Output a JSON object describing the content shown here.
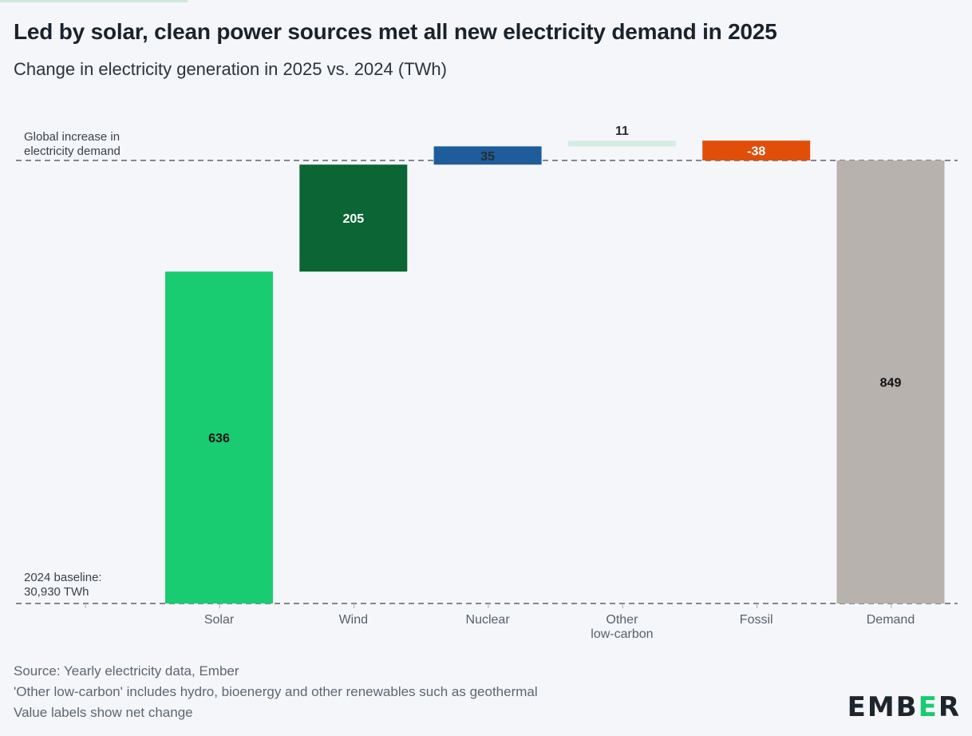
{
  "title": "Led by solar, clean power sources met all new electricity demand in 2025",
  "subtitle": "Change in electricity generation in 2025 vs. 2024 (TWh)",
  "annotations": {
    "demand_line": [
      "Global increase in",
      "electricity demand"
    ],
    "baseline": [
      "2024 baseline:",
      "30,930 TWh"
    ]
  },
  "chart_data": {
    "type": "waterfall",
    "unit": "TWh",
    "categories": [
      "Solar",
      "Wind",
      "Nuclear",
      "Other low-carbon",
      "Fossil",
      "Demand"
    ],
    "category_label_lines": [
      [
        "Solar"
      ],
      [
        "Wind"
      ],
      [
        "Nuclear"
      ],
      [
        "Other",
        "low-carbon"
      ],
      [
        "Fossil"
      ],
      [
        "Demand"
      ]
    ],
    "values": [
      636,
      205,
      35,
      11,
      -38,
      849
    ],
    "value_labels": [
      "636",
      "205",
      "35",
      "11",
      "-38",
      "849"
    ],
    "is_total": [
      false,
      false,
      false,
      false,
      false,
      true
    ],
    "colors": [
      "#19cc72",
      "#0b6535",
      "#1e5c9b",
      "#d3eee0",
      "#e04e0a",
      "#b7b2ae"
    ],
    "label_colors": [
      "#111111",
      "#ffffff",
      "#2b2b2b",
      "#2b2b2b",
      "#ffffff",
      "#111111"
    ],
    "reference_lines": [
      0,
      849
    ],
    "ylim": [
      0,
      900
    ],
    "grid": false
  },
  "footer": {
    "source": "Source: Yearly electricity data, Ember",
    "note1": "'Other low-carbon' includes hydro, bioenergy and other renewables such as geothermal",
    "note2": "Value labels show net change"
  },
  "logo": {
    "part1": "EMB",
    "accent": "E",
    "part2": "R"
  }
}
